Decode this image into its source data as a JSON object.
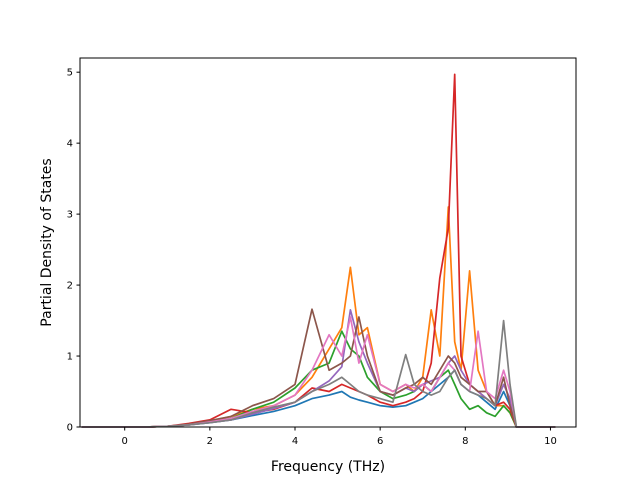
{
  "chart_data": {
    "type": "line",
    "title": "",
    "xlabel": "Frequency (THz)",
    "ylabel": "Partial Density of States",
    "xlim": [
      -1.05,
      10.6
    ],
    "ylim": [
      0,
      5.2
    ],
    "xticks": [
      0,
      2,
      4,
      6,
      8,
      10
    ],
    "yticks": [
      0,
      1,
      2,
      3,
      4,
      5
    ],
    "grid": false,
    "legend": "none",
    "x": [
      -1.0,
      0.0,
      0.5,
      1.0,
      1.5,
      2.0,
      2.5,
      3.0,
      3.5,
      4.0,
      4.4,
      4.8,
      5.1,
      5.3,
      5.5,
      5.7,
      6.0,
      6.3,
      6.6,
      6.8,
      7.0,
      7.2,
      7.4,
      7.6,
      7.75,
      7.9,
      8.1,
      8.3,
      8.5,
      8.7,
      8.9,
      9.05,
      9.2,
      10.1
    ],
    "series": [
      {
        "color": "#1f77b4",
        "values": [
          0,
          0,
          0,
          0.01,
          0.03,
          0.06,
          0.1,
          0.16,
          0.22,
          0.3,
          0.4,
          0.45,
          0.5,
          0.42,
          0.38,
          0.35,
          0.3,
          0.28,
          0.3,
          0.35,
          0.4,
          0.5,
          0.6,
          0.7,
          0.8,
          0.6,
          0.5,
          0.45,
          0.35,
          0.25,
          0.5,
          0.3,
          0,
          0
        ]
      },
      {
        "color": "#ff7f0e",
        "values": [
          0,
          0,
          0,
          0.01,
          0.03,
          0.08,
          0.15,
          0.25,
          0.3,
          0.45,
          0.7,
          1.1,
          1.4,
          2.25,
          1.3,
          1.4,
          0.6,
          0.5,
          0.6,
          0.5,
          0.7,
          1.65,
          1.0,
          3.1,
          1.2,
          0.8,
          2.2,
          0.8,
          0.5,
          0.3,
          0.3,
          0.2,
          0,
          0
        ]
      },
      {
        "color": "#2ca02c",
        "values": [
          0,
          0,
          0,
          0.01,
          0.03,
          0.07,
          0.12,
          0.25,
          0.35,
          0.55,
          0.8,
          0.9,
          1.35,
          1.1,
          1.0,
          0.7,
          0.5,
          0.4,
          0.45,
          0.5,
          0.6,
          0.5,
          0.7,
          0.8,
          0.6,
          0.4,
          0.25,
          0.3,
          0.2,
          0.15,
          0.3,
          0.2,
          0,
          0
        ]
      },
      {
        "color": "#d62728",
        "values": [
          0,
          0,
          0,
          0.01,
          0.05,
          0.1,
          0.25,
          0.2,
          0.25,
          0.35,
          0.55,
          0.5,
          0.6,
          0.55,
          0.5,
          0.45,
          0.35,
          0.3,
          0.35,
          0.4,
          0.5,
          0.9,
          2.1,
          2.8,
          4.97,
          1.0,
          0.6,
          0.5,
          0.4,
          0.3,
          0.35,
          0.25,
          0,
          0
        ]
      },
      {
        "color": "#9467bd",
        "values": [
          0,
          0,
          0,
          0.01,
          0.03,
          0.06,
          0.1,
          0.18,
          0.26,
          0.35,
          0.5,
          0.65,
          0.85,
          1.65,
          1.2,
          0.9,
          0.5,
          0.45,
          0.55,
          0.5,
          0.6,
          0.65,
          0.7,
          0.9,
          1.0,
          0.8,
          0.6,
          0.5,
          0.4,
          0.3,
          0.6,
          0.4,
          0,
          0
        ]
      },
      {
        "color": "#8c564b",
        "values": [
          0,
          0,
          0,
          0.01,
          0.04,
          0.09,
          0.15,
          0.3,
          0.4,
          0.6,
          1.66,
          0.8,
          0.9,
          1.0,
          1.55,
          1.0,
          0.5,
          0.45,
          0.55,
          0.6,
          0.7,
          0.6,
          0.8,
          1.0,
          0.9,
          0.7,
          0.6,
          0.5,
          0.5,
          0.3,
          0.7,
          0.3,
          0,
          0
        ]
      },
      {
        "color": "#e377c2",
        "values": [
          0,
          0,
          0,
          0.01,
          0.03,
          0.07,
          0.12,
          0.22,
          0.3,
          0.45,
          0.8,
          1.3,
          1.0,
          1.55,
          0.9,
          1.3,
          0.6,
          0.5,
          0.6,
          0.55,
          0.6,
          0.5,
          0.7,
          0.9,
          0.8,
          0.6,
          0.5,
          1.35,
          0.5,
          0.4,
          0.8,
          0.5,
          0,
          0
        ]
      },
      {
        "color": "#7f7f7f",
        "values": [
          0,
          0,
          0,
          0.01,
          0.03,
          0.06,
          0.1,
          0.2,
          0.28,
          0.35,
          0.5,
          0.6,
          0.7,
          0.6,
          0.5,
          0.45,
          0.4,
          0.35,
          1.02,
          0.6,
          0.5,
          0.45,
          0.5,
          0.7,
          0.8,
          0.6,
          0.5,
          0.45,
          0.4,
          0.3,
          1.5,
          0.6,
          0,
          0
        ]
      }
    ]
  }
}
